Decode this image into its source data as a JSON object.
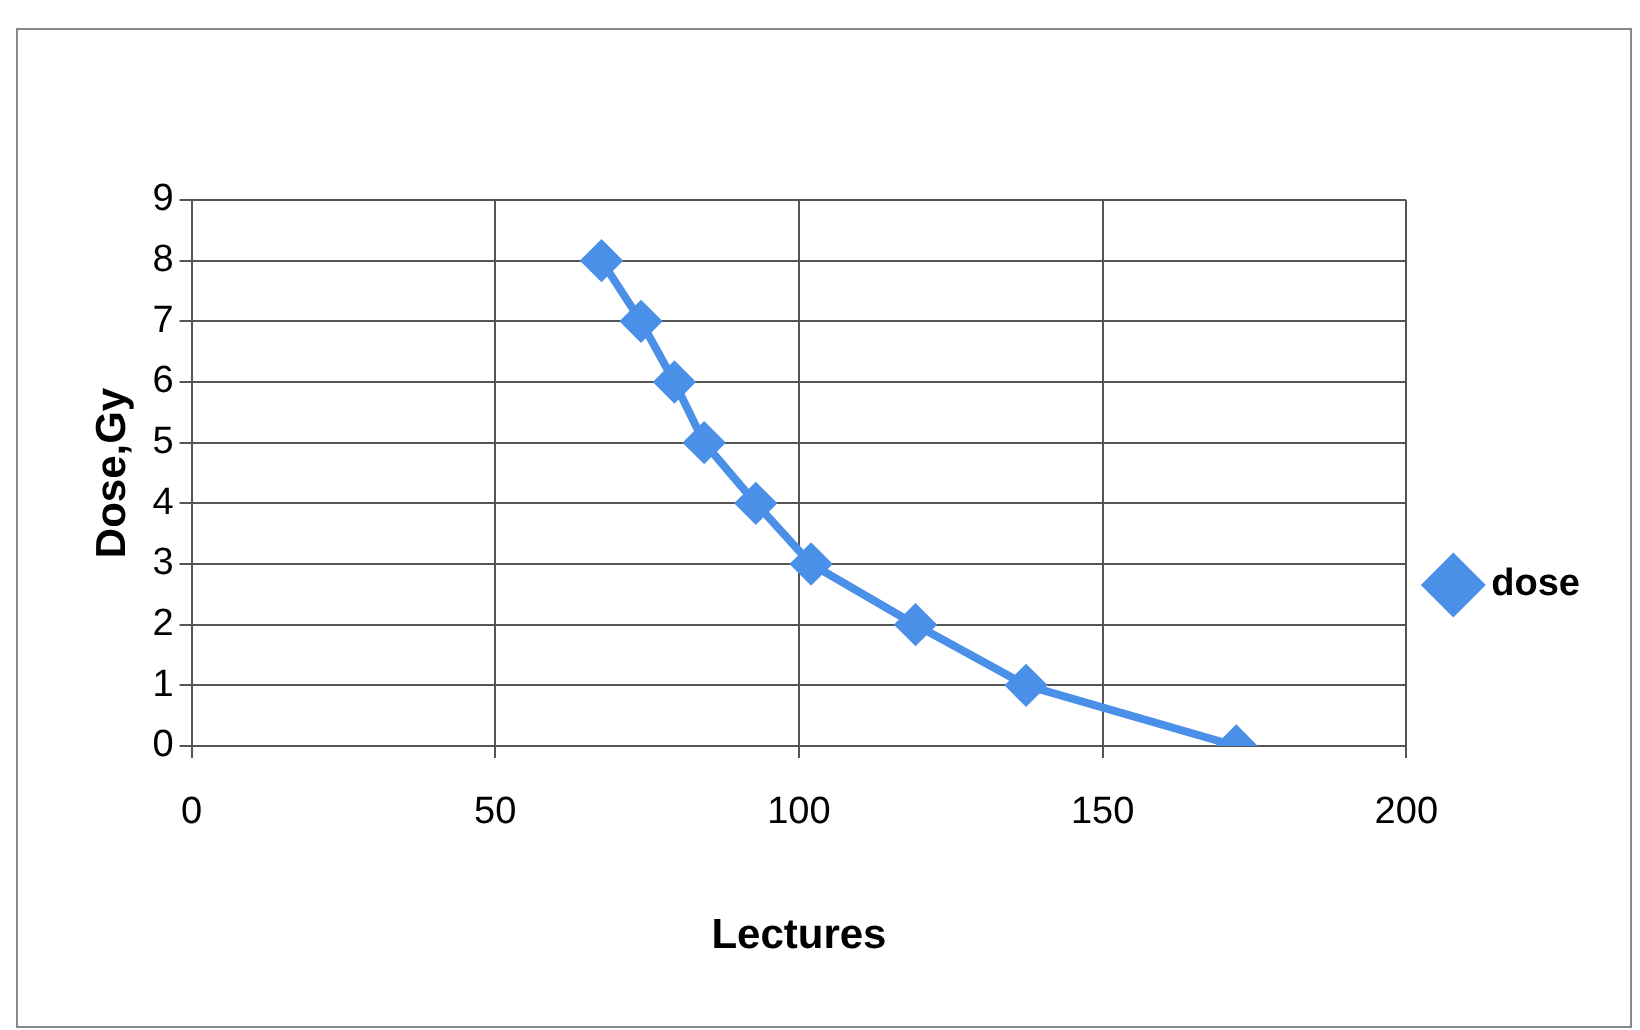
{
  "chart_data": {
    "type": "line",
    "xlabel": "Lectures",
    "ylabel": "Dose,Gy",
    "x": [
      67.5,
      74,
      79.5,
      84.4,
      92.9,
      102,
      119.2,
      137.4,
      172
    ],
    "series": [
      {
        "name": "dose",
        "color": "#4a8fe8",
        "values": [
          8,
          7,
          6,
          5,
          4,
          3,
          2,
          1,
          0
        ]
      }
    ],
    "xlim": [
      0,
      200
    ],
    "xticks": [
      0,
      50,
      100,
      150,
      200
    ],
    "ylim": [
      0,
      9
    ],
    "yticks": [
      0,
      1,
      2,
      3,
      4,
      5,
      6,
      7,
      8,
      9
    ],
    "grid": true,
    "legend": "right",
    "marker": "diamond",
    "line_style": "solid"
  }
}
